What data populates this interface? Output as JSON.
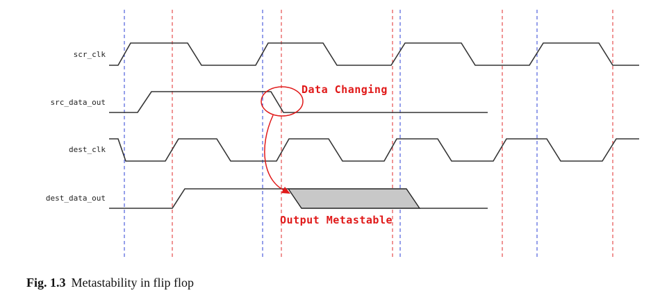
{
  "signals": [
    {
      "label": "scr_clk"
    },
    {
      "label": "src_data_out"
    },
    {
      "label": "dest_clk"
    },
    {
      "label": "dest_data_out"
    }
  ],
  "annotations": {
    "data_changing": "Data Changing",
    "output_metastable": "Output Metastable"
  },
  "caption": {
    "number": "Fig. 1.3",
    "text": "Metastability in flip flop"
  },
  "colors": {
    "source_clock_edges": "#2b3fd6",
    "dest_clock_edges": "#e02a2a",
    "annotation": "#e01818",
    "metastable_region": "#c8c8c8"
  }
}
